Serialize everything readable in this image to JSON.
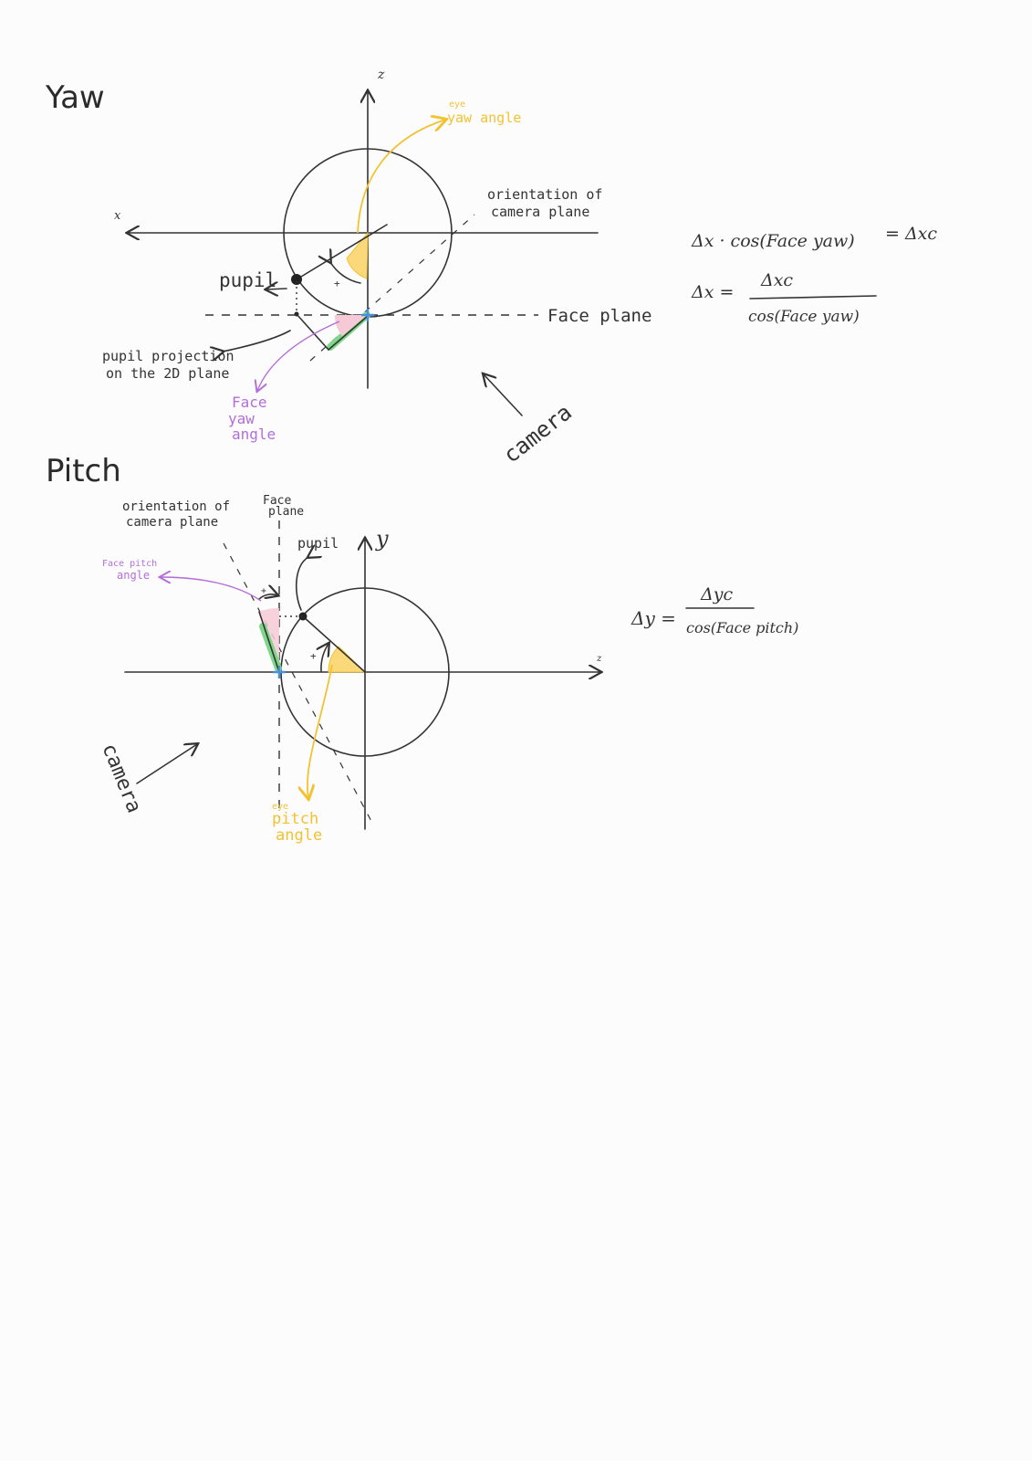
{
  "colors": {
    "ink": "#333333",
    "eye_angle": "#f2c232",
    "eye_angle_fill": "#fbd97a",
    "face_angle": "#b36ed8",
    "face_angle_fill": "#f6c9d6",
    "face_plane_segment": "#7fd68a",
    "origin_marker": "#4a90d9"
  },
  "yaw": {
    "title": "Yaw",
    "axis_up_label": "z",
    "axis_left_label": "x",
    "eye_label_small": "eye",
    "eye_yaw_angle_label": "yaw angle",
    "orientation_label_line1": "orientation of",
    "orientation_label_line2": "camera plane",
    "pupil_label": "pupil",
    "face_plane_label": "Face plane",
    "projection_label_line1": "pupil projection",
    "projection_label_line2": "on the 2D plane",
    "face_yaw_line1": "Face",
    "face_yaw_line2": "yaw",
    "face_yaw_line3": "angle",
    "camera_label": "camera",
    "plus_sign": "+",
    "eq1_left": "Δx · cos(Face yaw)",
    "eq1_right": "= Δxc",
    "eq2_left": "Δx =",
    "eq2_num": "Δxc",
    "eq2_den": "cos(Face yaw)"
  },
  "pitch": {
    "title": "Pitch",
    "axis_up_label": "y",
    "axis_right_label": "z",
    "orientation_label_line1": "orientation of",
    "orientation_label_line2": "camera plane",
    "face_plane_line1": "Face",
    "face_plane_line2": "plane",
    "pupil_label": "pupil",
    "face_pitch_line1": "Face pitch",
    "face_pitch_line2": "angle",
    "eye_label_small": "eye",
    "eye_pitch_line1": "pitch",
    "eye_pitch_line2": "angle",
    "camera_label": "camera",
    "plus_sign_1": "+",
    "plus_sign_2": "+",
    "eq_left": "Δy =",
    "eq_num": "Δyc",
    "eq_den": "cos(Face pitch)"
  }
}
